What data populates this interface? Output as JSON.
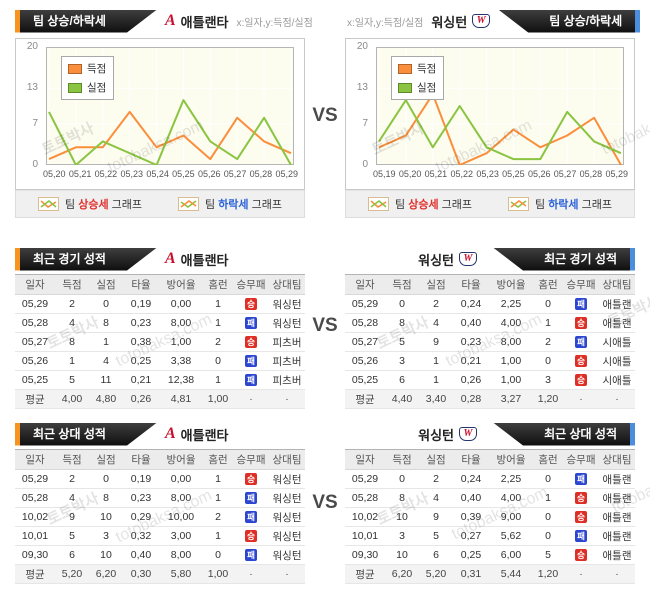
{
  "colors": {
    "accent_orange": "#f7941d",
    "accent_blue": "#4b8ede",
    "win_badge": "#dd2f26",
    "loss_badge": "#2c46cf",
    "up_text": "#e0302c",
    "down_text": "#2b62d9"
  },
  "vs": "VS",
  "watermark": {
    "name": "토토박사",
    "domain": "totobaksa.com"
  },
  "banners": {
    "trend": "팀 상승/하락세",
    "recent_games": "최근 경기 성적",
    "head_to_head": "최근 상대 성적"
  },
  "teams": {
    "left": {
      "name": "애틀랜타",
      "logo_glyph": "A"
    },
    "right": {
      "name": "워싱턴",
      "logo_glyph": "W"
    }
  },
  "axis_note": "x:일자,y:득점/실점",
  "chart_footer": {
    "items": [
      {
        "pre": "팀 ",
        "em": "상승세",
        "post": " 그래프",
        "color": "#e0302c"
      },
      {
        "pre": "팀 ",
        "em": "하락세",
        "post": " 그래프",
        "color": "#2b62d9"
      }
    ]
  },
  "chart_data": [
    {
      "type": "line",
      "team": "애틀랜타",
      "title": "팀 상승/하락세",
      "xlabel": "일자",
      "ylabel": "득점/실점",
      "ylim": [
        0,
        20
      ],
      "yticks": [
        0,
        7,
        13,
        20
      ],
      "x": [
        "05,20",
        "05,21",
        "05,22",
        "05,23",
        "05,24",
        "05,25",
        "05,26",
        "05,27",
        "05,28",
        "05,29"
      ],
      "series": [
        {
          "name": "득점",
          "color": "#fb8e3c",
          "values": [
            1,
            3,
            3,
            9,
            3,
            5,
            1,
            8,
            4,
            2
          ]
        },
        {
          "name": "실점",
          "color": "#8ac440",
          "values": [
            9,
            0,
            4,
            2,
            0,
            11,
            4,
            1,
            8,
            0
          ]
        }
      ],
      "plot_bg": "#fcfcef",
      "grid": true,
      "legend_position": "top-left"
    },
    {
      "type": "line",
      "team": "워싱턴",
      "title": "팀 상승/하락세",
      "xlabel": "일자",
      "ylabel": "득점/실점",
      "ylim": [
        0,
        20
      ],
      "yticks": [
        0,
        7,
        13,
        20
      ],
      "x": [
        "05,19",
        "05,20",
        "05,21",
        "05,22",
        "05,23",
        "05,25",
        "05,26",
        "05,27",
        "05,28",
        "05,29"
      ],
      "series": [
        {
          "name": "득점",
          "color": "#fb8e3c",
          "values": [
            3,
            5,
            12,
            0,
            2,
            6,
            3,
            5,
            8,
            0
          ]
        },
        {
          "name": "실점",
          "color": "#8ac440",
          "values": [
            4,
            11,
            3,
            10,
            3,
            1,
            1,
            9,
            4,
            2
          ]
        }
      ],
      "plot_bg": "#fcfcef",
      "grid": true,
      "legend_position": "top-left"
    }
  ],
  "tables": {
    "columns": [
      "일자",
      "득점",
      "실점",
      "타율",
      "방어율",
      "홈런",
      "승무패",
      "상대팀"
    ],
    "avg_label": "평균",
    "dot": "·",
    "recent_left": {
      "rows": [
        [
          "05,29",
          "2",
          "0",
          "0,19",
          "0,00",
          "1",
          "승",
          "워싱턴"
        ],
        [
          "05,28",
          "4",
          "8",
          "0,23",
          "8,00",
          "1",
          "패",
          "워싱턴"
        ],
        [
          "05,27",
          "8",
          "1",
          "0,38",
          "1,00",
          "2",
          "승",
          "피츠버"
        ],
        [
          "05,26",
          "1",
          "4",
          "0,25",
          "3,38",
          "0",
          "패",
          "피츠버"
        ],
        [
          "05,25",
          "5",
          "11",
          "0,21",
          "12,38",
          "1",
          "패",
          "피츠버"
        ]
      ],
      "avg": [
        "4,00",
        "4,80",
        "0,26",
        "4,81",
        "1,00"
      ]
    },
    "recent_right": {
      "rows": [
        [
          "05,29",
          "0",
          "2",
          "0,24",
          "2,25",
          "0",
          "패",
          "애틀랜"
        ],
        [
          "05,28",
          "8",
          "4",
          "0,40",
          "4,00",
          "1",
          "승",
          "애틀랜"
        ],
        [
          "05,27",
          "5",
          "9",
          "0,23",
          "8,00",
          "2",
          "패",
          "시애틀"
        ],
        [
          "05,26",
          "3",
          "1",
          "0,21",
          "1,00",
          "0",
          "승",
          "시애틀"
        ],
        [
          "05,25",
          "6",
          "1",
          "0,26",
          "1,00",
          "3",
          "승",
          "시애틀"
        ]
      ],
      "avg": [
        "4,40",
        "3,40",
        "0,28",
        "3,27",
        "1,20"
      ]
    },
    "h2h_left": {
      "rows": [
        [
          "05,29",
          "2",
          "0",
          "0,19",
          "0,00",
          "1",
          "승",
          "워싱턴"
        ],
        [
          "05,28",
          "4",
          "8",
          "0,23",
          "8,00",
          "1",
          "패",
          "워싱턴"
        ],
        [
          "10,02",
          "9",
          "10",
          "0,29",
          "10,00",
          "2",
          "패",
          "워싱턴"
        ],
        [
          "10,01",
          "5",
          "3",
          "0,32",
          "3,00",
          "1",
          "승",
          "워싱턴"
        ],
        [
          "09,30",
          "6",
          "10",
          "0,40",
          "8,00",
          "0",
          "패",
          "워싱턴"
        ]
      ],
      "avg": [
        "5,20",
        "6,20",
        "0,30",
        "5,80",
        "1,00"
      ]
    },
    "h2h_right": {
      "rows": [
        [
          "05,29",
          "0",
          "2",
          "0,24",
          "2,25",
          "0",
          "패",
          "애틀랜"
        ],
        [
          "05,28",
          "8",
          "4",
          "0,40",
          "4,00",
          "1",
          "승",
          "애틀랜"
        ],
        [
          "10,02",
          "10",
          "9",
          "0,39",
          "9,00",
          "0",
          "승",
          "애틀랜"
        ],
        [
          "10,01",
          "3",
          "5",
          "0,27",
          "5,62",
          "0",
          "패",
          "애틀랜"
        ],
        [
          "09,30",
          "10",
          "6",
          "0,25",
          "6,00",
          "5",
          "승",
          "애틀랜"
        ]
      ],
      "avg": [
        "6,20",
        "5,20",
        "0,31",
        "5,44",
        "1,20"
      ]
    }
  }
}
